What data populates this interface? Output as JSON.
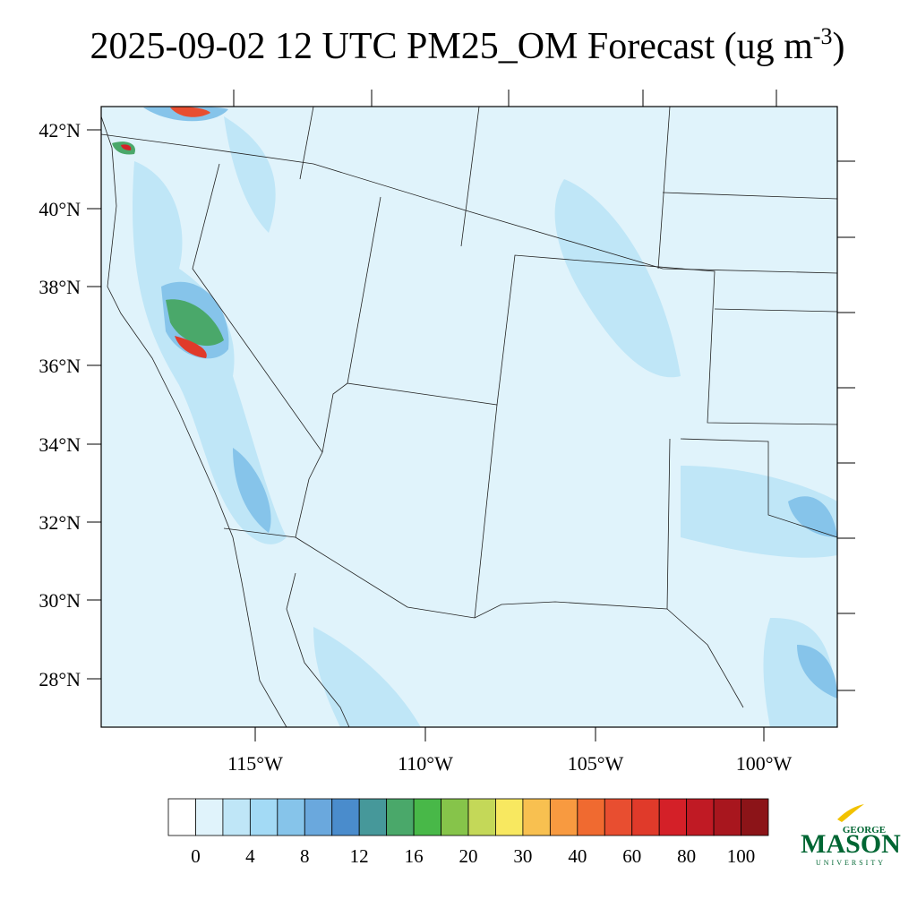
{
  "header": {
    "title_parts": [
      "2025-09-02 12 UTC PM25_OM Forecast (ug m",
      "-3",
      ")"
    ]
  },
  "map": {
    "lat_labels": [
      "42°N",
      "40°N",
      "38°N",
      "36°N",
      "34°N",
      "32°N",
      "30°N",
      "28°N"
    ],
    "lon_labels": [
      "115°W",
      "110°W",
      "105°W",
      "100°W"
    ]
  },
  "colorbar": {
    "colors": [
      "#ffffff",
      "#e0f3fb",
      "#bfe6f7",
      "#a3daf5",
      "#86c4ea",
      "#6aa8dd",
      "#4a8ccc",
      "#46989a",
      "#4aa86a",
      "#48b848",
      "#86c44a",
      "#c4d858",
      "#f8e860",
      "#f8c050",
      "#f89a40",
      "#f06a30",
      "#e84e30",
      "#e03a2a",
      "#d42028",
      "#c01a24",
      "#a8161e",
      "#8c1418"
    ],
    "ticks": [
      0,
      4,
      8,
      12,
      16,
      20,
      30,
      40,
      60,
      80,
      100
    ]
  },
  "logo": {
    "top": "GEORGE",
    "main": "MASON",
    "bottom": "UNIVERSITY"
  }
}
